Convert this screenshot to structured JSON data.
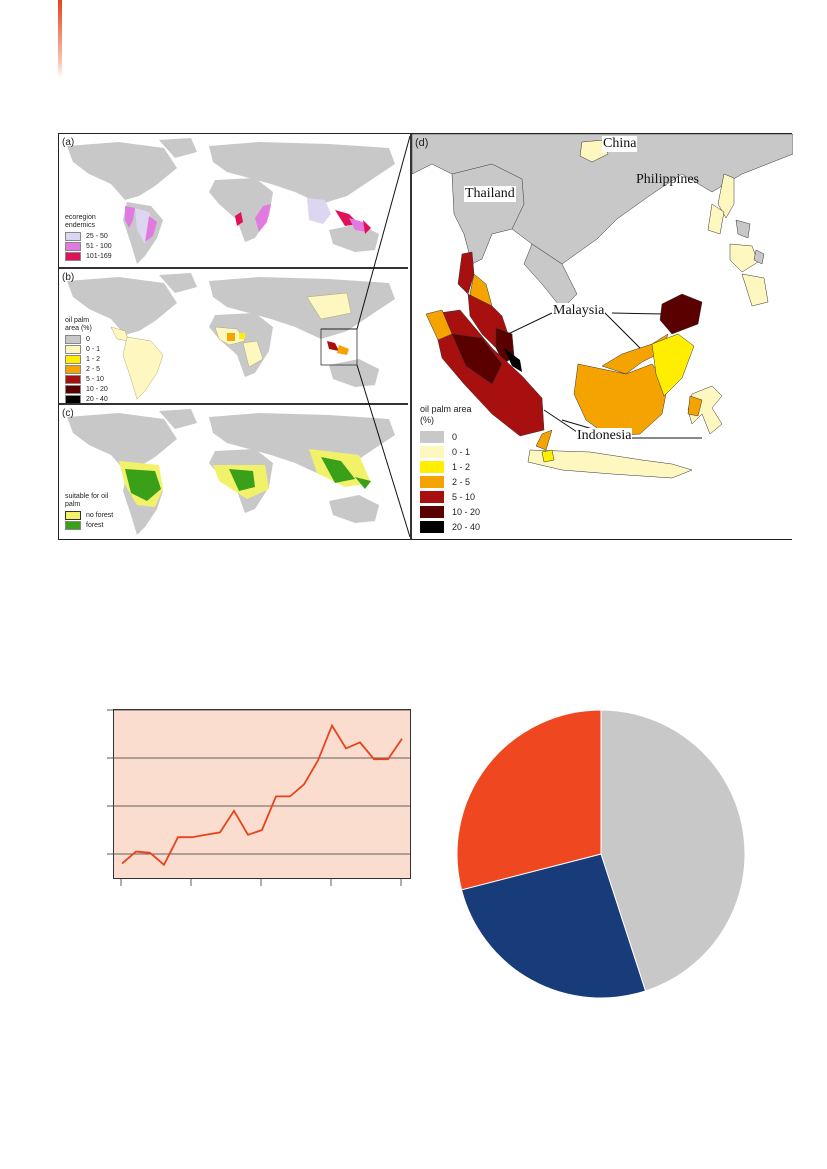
{
  "figure_maps": {
    "panel_a": {
      "label": "(a)",
      "legend_title": "ecoregion endemics",
      "legend": [
        {
          "label": "25 - 50",
          "color": "#dcd6f0"
        },
        {
          "label": "51 - 100",
          "color": "#e07ae0"
        },
        {
          "label": "101-169",
          "color": "#e0105a"
        }
      ]
    },
    "panel_b": {
      "label": "(b)",
      "legend_title": "oil palm area (%)",
      "legend": [
        {
          "label": "0",
          "color": "#c8c8c8"
        },
        {
          "label": "0 - 1",
          "color": "#fef8c0"
        },
        {
          "label": "1 - 2",
          "color": "#ffee00"
        },
        {
          "label": "2 - 5",
          "color": "#f5a300"
        },
        {
          "label": "5 - 10",
          "color": "#a81010"
        },
        {
          "label": "10 - 20",
          "color": "#5a0000"
        },
        {
          "label": "20 - 40",
          "color": "#000000"
        }
      ]
    },
    "panel_c": {
      "label": "(c)",
      "legend_title": "suitable for oil palm",
      "legend": [
        {
          "label": "no forest",
          "color": "#f2f26a"
        },
        {
          "label": "forest",
          "color": "#3aa01a"
        }
      ]
    },
    "panel_d": {
      "label": "(d)",
      "countries": [
        "China",
        "Thailand",
        "Philippines",
        "Malaysia",
        "Indonesia"
      ],
      "legend_title": "oil palm area (%)",
      "legend": [
        {
          "label": "0",
          "color": "#c8c8c8"
        },
        {
          "label": "0 - 1",
          "color": "#fef8c0"
        },
        {
          "label": "1 - 2",
          "color": "#ffee00"
        },
        {
          "label": "2 - 5",
          "color": "#f5a300"
        },
        {
          "label": "5 - 10",
          "color": "#a81010"
        },
        {
          "label": "10 - 20",
          "color": "#5a0000"
        },
        {
          "label": "20 - 40",
          "color": "#000000"
        }
      ]
    }
  },
  "colors": {
    "accent": "#e8431c",
    "land": "#c8c8c8",
    "line_series": "#e8431c",
    "chart_bg": "#fbddd0"
  },
  "chart_data": [
    {
      "type": "line",
      "title": "",
      "xlabel": "",
      "ylabel": "",
      "x": [
        0,
        1,
        2,
        3,
        4,
        5,
        6,
        7,
        8,
        9,
        10,
        11,
        12,
        13,
        14,
        15,
        16,
        17,
        18,
        19,
        20
      ],
      "series": [
        {
          "values": [
            0.2,
            1.2,
            1.1,
            0.1,
            2.4,
            2.4,
            2.6,
            2.8,
            4.6,
            2.6,
            3.0,
            5.8,
            5.8,
            6.8,
            8.8,
            11.7,
            9.8,
            10.3,
            8.9,
            8.9,
            10.6
          ]
        }
      ],
      "ylim": [
        -1,
        13
      ],
      "yticks": [
        1,
        5,
        9,
        13
      ],
      "xticks": [
        0,
        5,
        10,
        15,
        20
      ],
      "grid": "horizontal",
      "legend": "none"
    },
    {
      "type": "pie",
      "title": "",
      "slices": [
        {
          "value": 45,
          "color": "#c8c8c8"
        },
        {
          "value": 26,
          "color": "#183c7a"
        },
        {
          "value": 29,
          "color": "#ef4820"
        }
      ],
      "start": "top, clockwise",
      "legend": "none"
    }
  ]
}
